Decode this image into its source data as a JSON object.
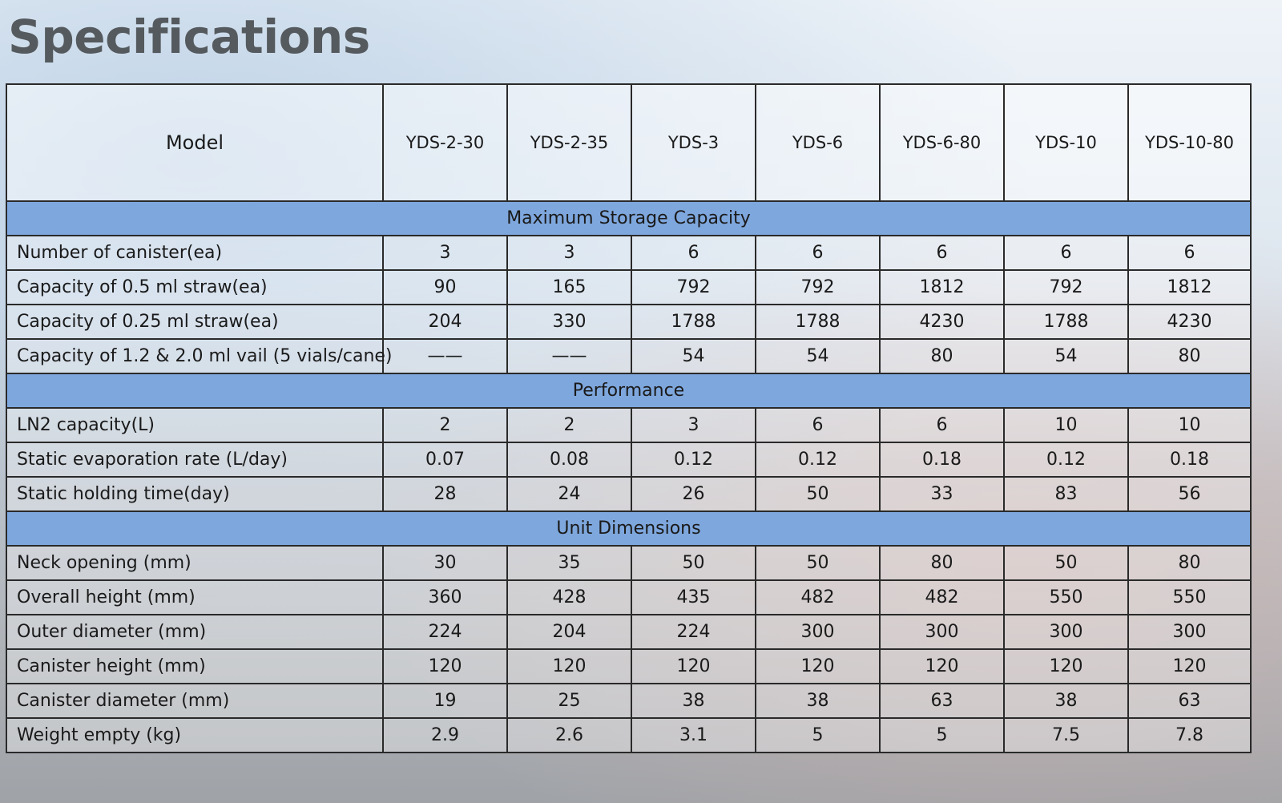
{
  "title": "Specifications",
  "table": {
    "header": [
      "Model",
      "YDS-2-30",
      "YDS-2-35",
      "YDS-3",
      "YDS-6",
      "YDS-6-80",
      "YDS-10",
      "YDS-10-80"
    ],
    "sections": [
      {
        "title": "Maximum Storage Capacity",
        "rows": [
          [
            "Number of canister(ea)",
            "3",
            "3",
            "6",
            "6",
            "6",
            "6",
            "6"
          ],
          [
            "Capacity of 0.5 ml straw(ea)",
            "90",
            "165",
            "792",
            "792",
            "1812",
            "792",
            "1812"
          ],
          [
            "Capacity of 0.25 ml straw(ea)",
            "204",
            "330",
            "1788",
            "1788",
            "4230",
            "1788",
            "4230"
          ],
          [
            "Capacity of 1.2 & 2.0 ml vail (5 vials/cane)",
            "——",
            "——",
            "54",
            "54",
            "80",
            "54",
            "80"
          ]
        ]
      },
      {
        "title": "Performance",
        "rows": [
          [
            "LN2 capacity(L)",
            "2",
            "2",
            "3",
            "6",
            "6",
            "10",
            "10"
          ],
          [
            "Static evaporation rate (L/day)",
            "0.07",
            "0.08",
            "0.12",
            "0.12",
            "0.18",
            "0.12",
            "0.18"
          ],
          [
            "Static holding time(day)",
            "28",
            "24",
            "26",
            "50",
            "33",
            "83",
            "56"
          ]
        ]
      },
      {
        "title": "Unit Dimensions",
        "rows": [
          [
            "Neck opening (mm)",
            "30",
            "35",
            "50",
            "50",
            "80",
            "50",
            "80"
          ],
          [
            "Overall height (mm)",
            "360",
            "428",
            "435",
            "482",
            "482",
            "550",
            "550"
          ],
          [
            "Outer diameter (mm)",
            "224",
            "204",
            "224",
            "300",
            "300",
            "300",
            "300"
          ],
          [
            "Canister height (mm)",
            "120",
            "120",
            "120",
            "120",
            "120",
            "120",
            "120"
          ],
          [
            "Canister diameter (mm)",
            "19",
            "25",
            "38",
            "38",
            "63",
            "38",
            "63"
          ],
          [
            "Weight empty (kg)",
            "2.9",
            "2.6",
            "3.1",
            "5",
            "5",
            "7.5",
            "7.8"
          ]
        ]
      }
    ]
  }
}
